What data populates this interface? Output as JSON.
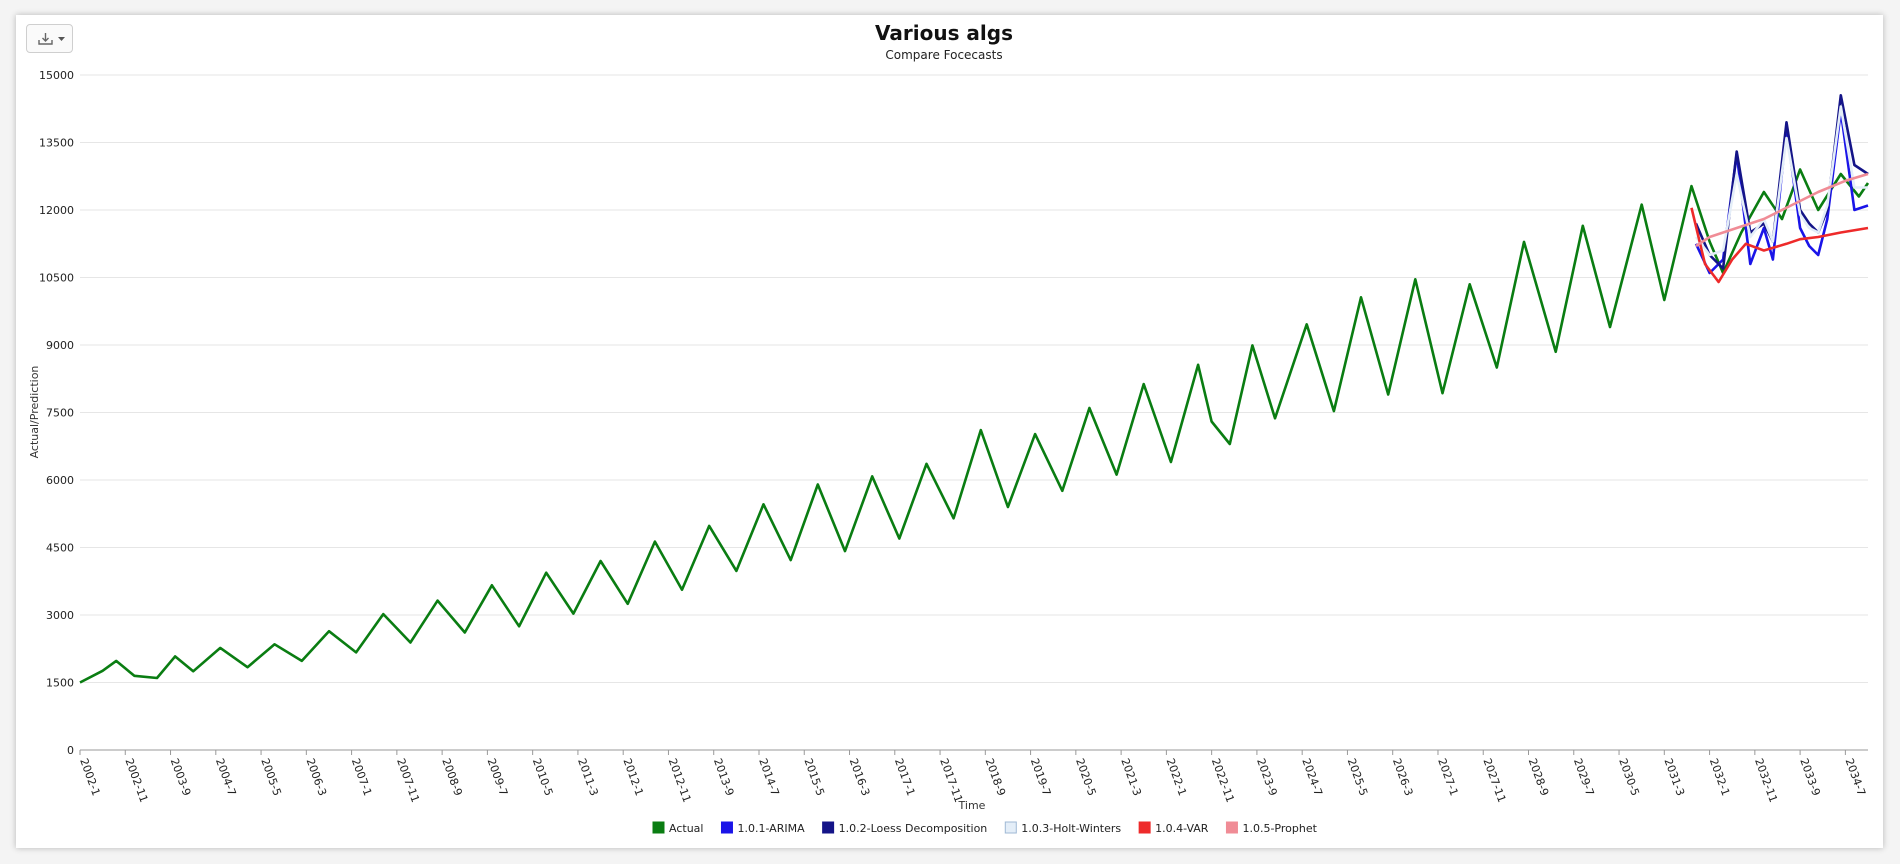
{
  "chart_data": {
    "type": "line",
    "title": "Various algs",
    "subtitle": "Compare Focecasts",
    "xlabel": "Time",
    "ylabel": "Actual/Prediction",
    "ylim": [
      0,
      15000
    ],
    "yticks": [
      0,
      1500,
      3000,
      4500,
      6000,
      7500,
      9000,
      10500,
      12000,
      13500,
      15000
    ],
    "xtick_labels": [
      "2002-1",
      "2002-11",
      "2003-9",
      "2004-7",
      "2005-5",
      "2006-3",
      "2007-1",
      "2007-11",
      "2008-9",
      "2009-7",
      "2010-5",
      "2011-3",
      "2012-1",
      "2012-11",
      "2013-9",
      "2014-7",
      "2015-5",
      "2016-3",
      "2017-1",
      "2017-11",
      "2018-9",
      "2019-7",
      "2020-5",
      "2021-3",
      "2022-1",
      "2022-11",
      "2023-9",
      "2024-7",
      "2025-5",
      "2026-3",
      "2027-1",
      "2027-11",
      "2028-9",
      "2029-7",
      "2030-5",
      "2031-3",
      "2032-1",
      "2032-11",
      "2033-9",
      "2034-7"
    ],
    "grid": true,
    "legend_position": "bottom",
    "x_start": "2002-1",
    "x_end": "2034-12",
    "series": [
      {
        "name": "Actual",
        "color": "#0a7d12",
        "points": [
          [
            "2002-1",
            1500
          ],
          [
            "2002-6",
            1760
          ],
          [
            "2002-9",
            1980
          ],
          [
            "2003-1",
            1650
          ],
          [
            "2003-6",
            1600
          ],
          [
            "2003-10",
            2080
          ],
          [
            "2004-2",
            1750
          ],
          [
            "2004-8",
            2270
          ],
          [
            "2005-2",
            1840
          ],
          [
            "2005-8",
            2350
          ],
          [
            "2006-2",
            1980
          ],
          [
            "2006-8",
            2640
          ],
          [
            "2007-2",
            2170
          ],
          [
            "2007-8",
            3020
          ],
          [
            "2008-2",
            2390
          ],
          [
            "2008-8",
            3320
          ],
          [
            "2009-2",
            2610
          ],
          [
            "2009-8",
            3660
          ],
          [
            "2010-2",
            2750
          ],
          [
            "2010-8",
            3940
          ],
          [
            "2011-2",
            3030
          ],
          [
            "2011-8",
            4200
          ],
          [
            "2012-2",
            3250
          ],
          [
            "2012-8",
            4630
          ],
          [
            "2013-2",
            3560
          ],
          [
            "2013-8",
            4980
          ],
          [
            "2014-2",
            3980
          ],
          [
            "2014-8",
            5460
          ],
          [
            "2015-2",
            4220
          ],
          [
            "2015-8",
            5900
          ],
          [
            "2016-2",
            4420
          ],
          [
            "2016-8",
            6080
          ],
          [
            "2017-2",
            4700
          ],
          [
            "2017-8",
            6360
          ],
          [
            "2018-2",
            5150
          ],
          [
            "2018-8",
            7110
          ],
          [
            "2019-2",
            5400
          ],
          [
            "2019-8",
            7020
          ],
          [
            "2020-2",
            5760
          ],
          [
            "2020-8",
            7600
          ],
          [
            "2021-2",
            6120
          ],
          [
            "2021-8",
            8130
          ],
          [
            "2022-2",
            6400
          ],
          [
            "2022-8",
            8560
          ],
          [
            "2022-11",
            7300
          ],
          [
            "2023-3",
            6800
          ],
          [
            "2023-8",
            8990
          ],
          [
            "2024-1",
            7370
          ],
          [
            "2024-8",
            9460
          ],
          [
            "2025-2",
            7530
          ],
          [
            "2025-8",
            10060
          ],
          [
            "2026-2",
            7900
          ],
          [
            "2026-8",
            10460
          ],
          [
            "2027-2",
            7930
          ],
          [
            "2027-8",
            10350
          ],
          [
            "2028-2",
            8500
          ],
          [
            "2028-8",
            11290
          ],
          [
            "2029-3",
            8850
          ],
          [
            "2029-9",
            11650
          ],
          [
            "2030-3",
            9400
          ],
          [
            "2030-10",
            12120
          ],
          [
            "2031-3",
            10000
          ],
          [
            "2031-9",
            12530
          ],
          [
            "2032-1",
            11300
          ],
          [
            "2032-4",
            10600
          ],
          [
            "2032-8",
            11500
          ],
          [
            "2033-1",
            12400
          ],
          [
            "2033-5",
            11800
          ],
          [
            "2033-9",
            12900
          ],
          [
            "2034-1",
            12000
          ],
          [
            "2034-6",
            12800
          ],
          [
            "2034-10",
            12300
          ],
          [
            "2034-12",
            12600
          ]
        ]
      },
      {
        "name": "1.0.1-ARIMA",
        "color": "#1a14e8",
        "points": [
          [
            "2031-10",
            11250
          ],
          [
            "2032-1",
            10600
          ],
          [
            "2032-4",
            10900
          ],
          [
            "2032-7",
            13250
          ],
          [
            "2032-10",
            10800
          ],
          [
            "2033-1",
            11600
          ],
          [
            "2033-3",
            10900
          ],
          [
            "2033-6",
            13800
          ],
          [
            "2033-9",
            11600
          ],
          [
            "2033-11",
            11200
          ],
          [
            "2034-1",
            11000
          ],
          [
            "2034-3",
            11800
          ],
          [
            "2034-6",
            14200
          ],
          [
            "2034-9",
            12000
          ],
          [
            "2034-12",
            12100
          ]
        ]
      },
      {
        "name": "1.0.2-Loess Decomposition",
        "color": "#141488",
        "points": [
          [
            "2031-10",
            11700
          ],
          [
            "2032-1",
            11000
          ],
          [
            "2032-4",
            10700
          ],
          [
            "2032-7",
            13300
          ],
          [
            "2032-10",
            11500
          ],
          [
            "2033-1",
            11700
          ],
          [
            "2033-3",
            11300
          ],
          [
            "2033-6",
            13950
          ],
          [
            "2033-9",
            12000
          ],
          [
            "2033-11",
            11700
          ],
          [
            "2034-1",
            11500
          ],
          [
            "2034-3",
            12000
          ],
          [
            "2034-6",
            14550
          ],
          [
            "2034-9",
            13000
          ],
          [
            "2034-12",
            12800
          ]
        ]
      },
      {
        "name": "1.0.3-Holt-Winters",
        "color": "#e4eef8",
        "points": [
          [
            "2031-10",
            11400
          ],
          [
            "2032-1",
            11000
          ],
          [
            "2032-4",
            11100
          ],
          [
            "2032-7",
            12800
          ],
          [
            "2032-10",
            11400
          ],
          [
            "2033-1",
            11800
          ],
          [
            "2033-3",
            11300
          ],
          [
            "2033-6",
            13600
          ],
          [
            "2033-9",
            11900
          ],
          [
            "2033-11",
            11600
          ],
          [
            "2034-1",
            11500
          ],
          [
            "2034-3",
            12100
          ],
          [
            "2034-6",
            14300
          ],
          [
            "2034-9",
            12500
          ],
          [
            "2034-12",
            12500
          ]
        ]
      },
      {
        "name": "1.0.4-VAR",
        "color": "#ee2a2a",
        "points": [
          [
            "2031-9",
            12050
          ],
          [
            "2031-12",
            10800
          ],
          [
            "2032-3",
            10400
          ],
          [
            "2032-6",
            10900
          ],
          [
            "2032-9",
            11250
          ],
          [
            "2033-1",
            11100
          ],
          [
            "2033-6",
            11250
          ],
          [
            "2033-9",
            11350
          ],
          [
            "2034-1",
            11400
          ],
          [
            "2034-6",
            11500
          ],
          [
            "2034-12",
            11600
          ]
        ]
      },
      {
        "name": "1.0.5-Prophet",
        "color": "#f08c96",
        "points": [
          [
            "2031-10",
            11200
          ],
          [
            "2032-1",
            11400
          ],
          [
            "2032-7",
            11600
          ],
          [
            "2033-1",
            11800
          ],
          [
            "2033-7",
            12100
          ],
          [
            "2034-1",
            12400
          ],
          [
            "2034-7",
            12650
          ],
          [
            "2034-12",
            12800
          ]
        ]
      }
    ]
  }
}
